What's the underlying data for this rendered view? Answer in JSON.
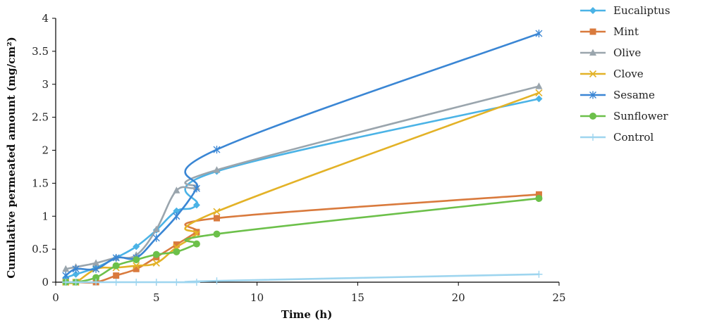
{
  "chart_data": {
    "type": "line",
    "title": "",
    "xlabel": "Time (h)",
    "ylabel": "Cumulative permeated amount (mg/cm²)",
    "xlim": [
      0,
      25
    ],
    "ylim": [
      0,
      4
    ],
    "x_ticks": [
      0,
      5,
      10,
      15,
      20,
      25
    ],
    "y_ticks": [
      0,
      0.5,
      1,
      1.5,
      2,
      2.5,
      3,
      3.5,
      4
    ],
    "x_tick_labels": [
      "0",
      "5",
      "10",
      "15",
      "20",
      "25"
    ],
    "y_tick_labels": [
      "0",
      "0.5",
      "1",
      "1.5",
      "2",
      "2.5",
      "3",
      "3.5",
      "4"
    ],
    "grid": false,
    "legend_position": "right",
    "series": [
      {
        "name": "Eucaliptus",
        "color": "#4bb3e6",
        "marker": "diamond",
        "x": [
          0.5,
          1,
          2,
          3,
          4,
          5,
          6,
          7,
          8,
          24
        ],
        "y": [
          0.07,
          0.12,
          0.22,
          0.37,
          0.54,
          0.79,
          1.08,
          1.17,
          1.68,
          2.78
        ]
      },
      {
        "name": "Mint",
        "color": "#d97a3d",
        "marker": "square",
        "x": [
          0.5,
          1,
          2,
          3,
          4,
          5,
          6,
          7,
          8,
          24
        ],
        "y": [
          0,
          0,
          0,
          0.1,
          0.2,
          0.38,
          0.57,
          0.76,
          0.97,
          1.33
        ]
      },
      {
        "name": "Olive",
        "color": "#9aa5ad",
        "marker": "triangle",
        "x": [
          0.5,
          1,
          2,
          3,
          4,
          5,
          6,
          7,
          8,
          24
        ],
        "y": [
          0.2,
          0.23,
          0.29,
          0.37,
          0.41,
          0.8,
          1.39,
          1.44,
          1.7,
          2.97
        ]
      },
      {
        "name": "Clove",
        "color": "#e3b227",
        "marker": "x",
        "x": [
          0.5,
          1,
          2,
          3,
          4,
          5,
          6,
          7,
          8,
          24
        ],
        "y": [
          0,
          0,
          0.2,
          0.22,
          0.25,
          0.29,
          0.53,
          0.73,
          1.07,
          2.87
        ]
      },
      {
        "name": "Sesame",
        "color": "#3a86d4",
        "marker": "star",
        "x": [
          0.5,
          1,
          2,
          3,
          4,
          5,
          6,
          7,
          8,
          24
        ],
        "y": [
          0.1,
          0.2,
          0.2,
          0.37,
          0.37,
          0.67,
          1.0,
          1.42,
          2.01,
          3.77
        ]
      },
      {
        "name": "Sunflower",
        "color": "#6cc04a",
        "marker": "circle",
        "x": [
          0.5,
          1,
          2,
          3,
          4,
          5,
          6,
          7,
          8,
          24
        ],
        "y": [
          0,
          0,
          0.07,
          0.25,
          0.34,
          0.42,
          0.46,
          0.58,
          0.73,
          1.27
        ]
      },
      {
        "name": "Control",
        "color": "#9ed5ef",
        "marker": "plus",
        "x": [
          0.5,
          1,
          2,
          3,
          4,
          5,
          6,
          7,
          8,
          24
        ],
        "y": [
          0,
          0,
          0,
          0,
          0,
          0,
          0,
          0,
          0.02,
          0.12
        ]
      }
    ]
  }
}
